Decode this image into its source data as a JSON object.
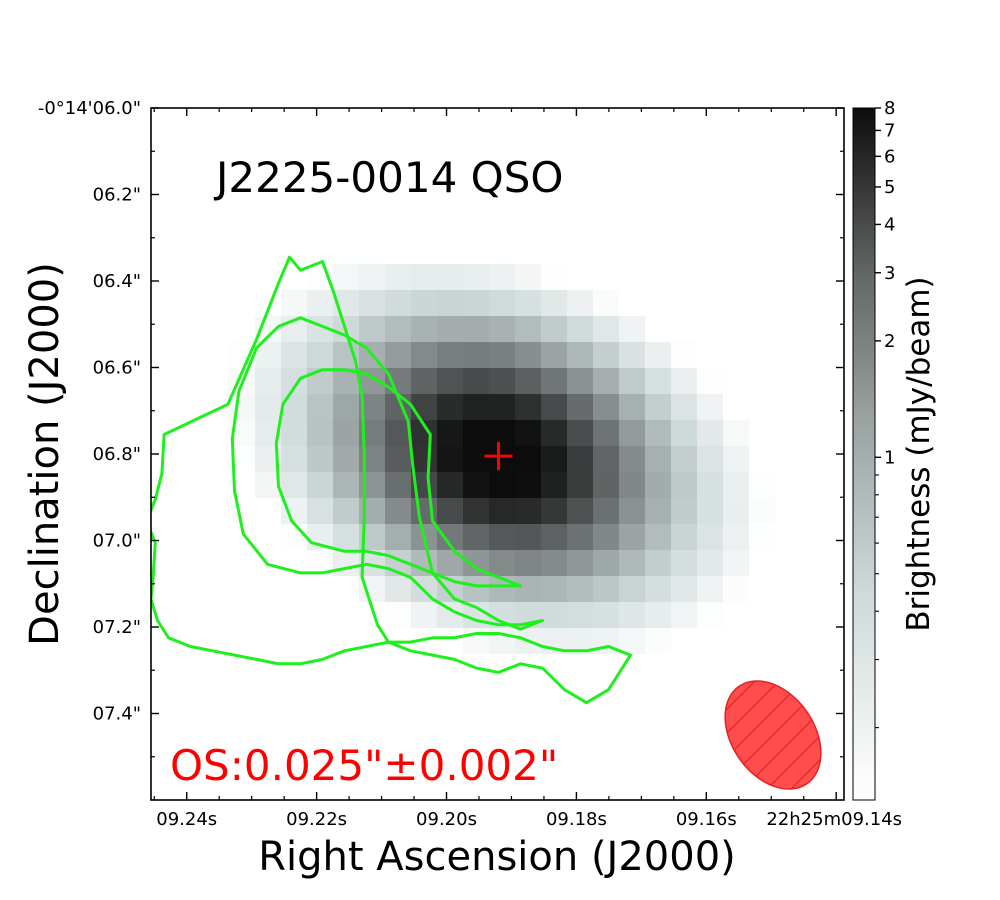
{
  "chart_data": {
    "type": "heatmap",
    "title": "J2225-0014 QSO",
    "annotation": "OS:0.025\"±0.002\"",
    "xlabel": "Right Ascension (J2000)",
    "ylabel": "Declination (J2000)",
    "colorbar_label": "Brightness (mJy/beam)",
    "colorbar_scale": "log",
    "colorbar_range": [
      0.13,
      8
    ],
    "x_ticks": [
      "09.24s",
      "09.22s",
      "09.20s",
      "09.18s",
      "09.16s",
      "22h25m09.14s"
    ],
    "y_ticks": [
      "-0°14'06.0\"",
      "06.2\"",
      "06.4\"",
      "06.6\"",
      "06.8\"",
      "07.0\"",
      "07.2\"",
      "07.4\""
    ],
    "colorbar_ticks": [
      {
        "value": 8,
        "label": "8"
      },
      {
        "value": 7,
        "label": "7"
      },
      {
        "value": 6,
        "label": "6"
      },
      {
        "value": 5,
        "label": "5"
      },
      {
        "value": 4,
        "label": "4"
      },
      {
        "value": 3,
        "label": "3"
      },
      {
        "value": 2,
        "label": "2"
      },
      {
        "value": 1,
        "label": "1"
      }
    ],
    "ra_range_sec": [
      9.2455,
      9.1388
    ],
    "dec_range_arcsec": [
      6.0,
      7.6
    ],
    "source": {
      "center_ra_sec": 9.192,
      "center_dec_arcsec": 6.805,
      "peak_mJy_per_beam": 8.0,
      "major_sigma_arcsec": 0.16,
      "minor_sigma_arcsec": 0.12,
      "position_angle_deg": -22,
      "extended_halo_mJy": 1.3
    },
    "contours": [
      {
        "level_label": "outer",
        "points": [
          [
            6,
            -0.46
          ],
          [
            5,
            -0.54
          ],
          [
            4,
            -0.57
          ],
          [
            3,
            -0.54
          ],
          [
            2,
            -0.49
          ],
          [
            1,
            -0.48
          ],
          [
            0,
            -0.5
          ],
          [
            -1,
            -0.49
          ],
          [
            -2,
            -0.47
          ],
          [
            -3,
            -0.46
          ],
          [
            -4,
            -0.45
          ],
          [
            -5,
            -0.43
          ],
          [
            -5.5,
            -0.39
          ],
          [
            -6.2,
            -0.28
          ],
          [
            -6.1,
            -0.14
          ],
          [
            -6.1,
            0.0
          ],
          [
            -6.2,
            0.14
          ],
          [
            -6.5,
            0.22
          ],
          [
            -7.5,
            0.38
          ],
          [
            -8,
            0.45
          ],
          [
            -8.5,
            0.44
          ],
          [
            -9,
            0.43
          ],
          [
            -9.5,
            0.46
          ],
          [
            -10,
            0.4
          ],
          [
            -11,
            0.27
          ],
          [
            -12.3,
            0.12
          ],
          [
            -15.2,
            0.05
          ],
          [
            -15.3,
            -0.04
          ],
          [
            -15.6,
            -0.1
          ],
          [
            -16,
            -0.15
          ],
          [
            -15.6,
            -0.2
          ],
          [
            -15.7,
            -0.28
          ],
          [
            -15.8,
            -0.33
          ],
          [
            -15.5,
            -0.38
          ],
          [
            -15,
            -0.42
          ],
          [
            -14,
            -0.44
          ],
          [
            -13,
            -0.45
          ],
          [
            -12,
            -0.46
          ],
          [
            -11,
            -0.47
          ],
          [
            -10,
            -0.48
          ],
          [
            -9,
            -0.48
          ],
          [
            -8,
            -0.47
          ],
          [
            -7,
            -0.45
          ],
          [
            -6,
            -0.44
          ],
          [
            -5,
            -0.43
          ],
          [
            -4,
            -0.43
          ],
          [
            -3,
            -0.42
          ],
          [
            -2,
            -0.42
          ],
          [
            -1,
            -0.41
          ],
          [
            0,
            -0.41
          ],
          [
            1,
            -0.42
          ],
          [
            2,
            -0.44
          ],
          [
            3,
            -0.45
          ],
          [
            4,
            -0.45
          ],
          [
            5,
            -0.44
          ],
          [
            6,
            -0.46
          ]
        ]
      },
      {
        "level_label": "middle",
        "points": [
          [
            2,
            -0.38
          ],
          [
            1,
            -0.4
          ],
          [
            0,
            -0.38
          ],
          [
            -1,
            -0.35
          ],
          [
            -2,
            -0.33
          ],
          [
            -3,
            -0.27
          ],
          [
            -3.6,
            -0.14
          ],
          [
            -3.9,
            -0.02
          ],
          [
            -4.1,
            0.08
          ],
          [
            -5,
            0.19
          ],
          [
            -6,
            0.25
          ],
          [
            -7,
            0.28
          ],
          [
            -8,
            0.3
          ],
          [
            -9,
            0.32
          ],
          [
            -10,
            0.3
          ],
          [
            -11,
            0.25
          ],
          [
            -11.8,
            0.15
          ],
          [
            -12.1,
            0.04
          ],
          [
            -12,
            -0.08
          ],
          [
            -11.6,
            -0.18
          ],
          [
            -10.5,
            -0.25
          ],
          [
            -9,
            -0.27
          ],
          [
            -8,
            -0.27
          ],
          [
            -7,
            -0.26
          ],
          [
            -6,
            -0.25
          ],
          [
            -5,
            -0.26
          ],
          [
            -4,
            -0.28
          ],
          [
            -3,
            -0.33
          ],
          [
            -2,
            -0.36
          ],
          [
            -1,
            -0.38
          ],
          [
            0,
            -0.39
          ],
          [
            1,
            -0.39
          ],
          [
            2,
            -0.38
          ]
        ]
      },
      {
        "level_label": "inner",
        "points": [
          [
            1,
            -0.3
          ],
          [
            0,
            -0.28
          ],
          [
            -1,
            -0.26
          ],
          [
            -2,
            -0.22
          ],
          [
            -3,
            -0.15
          ],
          [
            -3.2,
            -0.05
          ],
          [
            -3.1,
            0.05
          ],
          [
            -4,
            0.12
          ],
          [
            -5,
            0.16
          ],
          [
            -6,
            0.19
          ],
          [
            -7,
            0.2
          ],
          [
            -8,
            0.2
          ],
          [
            -9,
            0.18
          ],
          [
            -9.8,
            0.12
          ],
          [
            -10.1,
            0.03
          ],
          [
            -10,
            -0.07
          ],
          [
            -9.4,
            -0.15
          ],
          [
            -8.5,
            -0.2
          ],
          [
            -7,
            -0.22
          ],
          [
            -6,
            -0.22
          ],
          [
            -5,
            -0.23
          ],
          [
            -4,
            -0.25
          ],
          [
            -3,
            -0.27
          ],
          [
            -2,
            -0.29
          ],
          [
            -1,
            -0.3
          ],
          [
            0,
            -0.3
          ],
          [
            1,
            -0.3
          ]
        ]
      }
    ],
    "marker": {
      "type": "cross",
      "ra_sec": 9.192,
      "dec_arcsec": 6.805
    },
    "beam": {
      "major_arcsec": 0.28,
      "minor_arcsec": 0.19,
      "position_angle_deg": 55,
      "location": "bottom-right",
      "hatched": true
    },
    "colors": {
      "contour": "#1ef01e",
      "marker": "#ff0000",
      "beam_fill": "#ff4d4d",
      "beam_edge": "#e82020",
      "annotation": "#ff0000"
    }
  }
}
